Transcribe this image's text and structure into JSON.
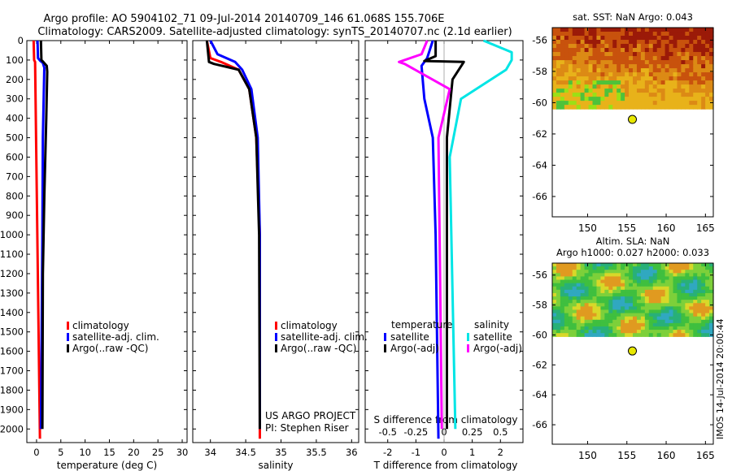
{
  "header": {
    "title_line1": "Argo profile: AO 5904102_71 09-Jul-2014 20140709_146 61.068S 155.706E",
    "title_line2": "Climatology: CARS2009. Satellite-adjusted climatology: synTS_20140707.nc (2.1d earlier)"
  },
  "credit": {
    "project": "US ARGO PROJECT",
    "pi": "PI: Stephen Riser",
    "stamp": "IMOS 14-Jul-2014 20:00:44"
  },
  "colors": {
    "climatology": "#ff0000",
    "satellite": "#0000ff",
    "argo": "#000000",
    "sat_salinity": "#00e5e5",
    "argo_salinity_diff": "#ff00ff",
    "float_marker": "#e8e800"
  },
  "chart_data": [
    {
      "id": "temperature",
      "type": "line",
      "xlabel": "temperature (deg C)",
      "ylabel": "",
      "xlim": [
        -2,
        31
      ],
      "ylim": [
        2070,
        0
      ],
      "xticks": [
        0,
        5,
        10,
        15,
        20,
        25,
        30
      ],
      "xtick_labels": [
        "0",
        "5",
        "10",
        "15",
        "20",
        "25",
        "30"
      ],
      "yticks": [
        0,
        100,
        200,
        300,
        400,
        500,
        600,
        700,
        800,
        900,
        1000,
        1100,
        1200,
        1300,
        1400,
        1500,
        1600,
        1700,
        1800,
        1900,
        2000
      ],
      "ytick_labels": [
        "0",
        "100",
        "200",
        "300",
        "400",
        "500",
        "600",
        "700",
        "800",
        "900",
        "1000",
        "1100",
        "1200",
        "1300",
        "1400",
        "1500",
        "1600",
        "1700",
        "1800",
        "1900",
        "2000"
      ],
      "legend": [
        "climatology",
        "satellite-adj. clim.",
        "Argo(..raw -QC)"
      ],
      "series": [
        {
          "name": "climatology",
          "color": "#ff0000",
          "x": [
            -0.6,
            -0.5,
            -0.3,
            0.7
          ],
          "y": [
            0,
            100,
            110,
            2050
          ]
        },
        {
          "name": "satellite-adj. clim.",
          "color": "#0000ff",
          "x": [
            0.2,
            0.3,
            0.8,
            1.3,
            1.6,
            1.3,
            1.2,
            0.9
          ],
          "y": [
            0,
            90,
            105,
            115,
            140,
            500,
            1000,
            2000
          ]
        },
        {
          "name": "Argo(..raw -QC)",
          "color": "#000000",
          "x": [
            0.9,
            1.0,
            1.4,
            2.1,
            2.2,
            2.0,
            1.6,
            1.3,
            1.2
          ],
          "y": [
            0,
            100,
            110,
            130,
            160,
            400,
            800,
            1200,
            2000
          ]
        }
      ]
    },
    {
      "id": "salinity",
      "type": "line",
      "xlabel": "salinity",
      "ylabel": "",
      "xlim": [
        33.75,
        36.1
      ],
      "ylim": [
        2070,
        0
      ],
      "xticks": [
        34,
        34.5,
        35,
        35.5,
        36
      ],
      "xtick_labels": [
        "34",
        "34.5",
        "35",
        "35.5",
        "36"
      ],
      "legend": [
        "climatology",
        "satellite-adj. clim.",
        "Argo(..raw -QC)"
      ],
      "series": [
        {
          "name": "climatology",
          "color": "#ff0000",
          "x": [
            33.95,
            34.0,
            34.15,
            34.4,
            34.55,
            34.65,
            34.7,
            34.7
          ],
          "y": [
            0,
            90,
            110,
            150,
            250,
            500,
            1000,
            2050
          ]
        },
        {
          "name": "satellite-adj. clim.",
          "color": "#0000ff",
          "x": [
            34.0,
            34.1,
            34.35,
            34.45,
            34.58,
            34.67,
            34.7,
            34.7
          ],
          "y": [
            0,
            70,
            110,
            150,
            250,
            500,
            1000,
            2000
          ]
        },
        {
          "name": "Argo(..raw -QC)",
          "color": "#000000",
          "x": [
            33.95,
            33.98,
            34.05,
            34.4,
            34.55,
            34.65,
            34.69,
            34.7
          ],
          "y": [
            0,
            110,
            120,
            150,
            250,
            500,
            1000,
            2000
          ]
        }
      ]
    },
    {
      "id": "difference",
      "type": "line",
      "xlabel": "T difference from climatology",
      "x2label": "S difference from climatology",
      "ylabel": "",
      "xlim": [
        -2.8,
        2.8
      ],
      "ylim": [
        2070,
        0
      ],
      "xticks": [
        -2,
        -1,
        0,
        1,
        2
      ],
      "xtick_labels": [
        "-2",
        "-1",
        "0",
        "1",
        "2"
      ],
      "x2ticks": [
        -0.5,
        -0.25,
        0,
        0.25,
        0.5
      ],
      "x2tick_labels": [
        "-0.5",
        "-0.25",
        "0",
        "0.25",
        "0.5"
      ],
      "legend_groups": [
        {
          "title": "temperature",
          "items": [
            "satellite",
            "Argo(-adj)"
          ]
        },
        {
          "title": "salinity",
          "items": [
            "satellite",
            "Argo(-adj)"
          ]
        }
      ],
      "series": [
        {
          "name": "temperature satellite",
          "color": "#0000ff",
          "x": [
            -0.4,
            -0.6,
            -0.8,
            -0.7,
            -0.4,
            -0.3,
            -0.2
          ],
          "y": [
            0,
            90,
            130,
            300,
            500,
            1000,
            2050
          ]
        },
        {
          "name": "temperature Argo(-adj)",
          "color": "#000000",
          "x": [
            -0.3,
            -0.3,
            -0.7,
            0.7,
            0.3,
            0.1,
            0.1
          ],
          "y": [
            0,
            80,
            105,
            110,
            200,
            500,
            2000
          ]
        },
        {
          "name": "salinity satellite",
          "color": "#00e5e5",
          "x": [
            0.35,
            0.6,
            0.6,
            0.55,
            0.15,
            0.05,
            0.1
          ],
          "y": [
            0,
            60,
            100,
            150,
            300,
            600,
            2000
          ]
        },
        {
          "name": "salinity Argo(-adj)",
          "color": "#ff00ff",
          "x": [
            -0.15,
            -0.2,
            -0.4,
            -0.35,
            0.05,
            -0.05,
            -0.02
          ],
          "y": [
            0,
            70,
            110,
            120,
            250,
            500,
            2000
          ]
        }
      ]
    },
    {
      "id": "sst-map",
      "type": "heatmap",
      "title": "sat. SST: NaN Argo: 0.043",
      "xlim": [
        145.5,
        166
      ],
      "ylim": [
        -67.3,
        -55.2
      ],
      "xticks": [
        150,
        155,
        160,
        165
      ],
      "xtick_labels": [
        "150",
        "155",
        "160",
        "165"
      ],
      "yticks": [
        -56,
        -58,
        -60,
        -62,
        -64,
        -66
      ],
      "ytick_labels": [
        "-56",
        "-58",
        "-60",
        "-62",
        "-64",
        "-66"
      ],
      "data_extent_lat": [
        -60.4,
        -55.2
      ],
      "float_position": {
        "lon": 155.7,
        "lat": -61.07
      }
    },
    {
      "id": "sla-map",
      "type": "heatmap",
      "title": "Altim. SLA: NaN",
      "subtitle": "Argo h1000: 0.027 h2000: 0.033",
      "xlim": [
        145.5,
        166
      ],
      "ylim": [
        -67.3,
        -55.2
      ],
      "xticks": [
        150,
        155,
        160,
        165
      ],
      "xtick_labels": [
        "150",
        "155",
        "160",
        "165"
      ],
      "yticks": [
        -56,
        -58,
        -60,
        -62,
        -64,
        -66
      ],
      "ytick_labels": [
        "-56",
        "-58",
        "-60",
        "-62",
        "-64",
        "-66"
      ],
      "data_extent_lat": [
        -60.1,
        -55.2
      ],
      "float_position": {
        "lon": 155.7,
        "lat": -61.07
      }
    }
  ]
}
